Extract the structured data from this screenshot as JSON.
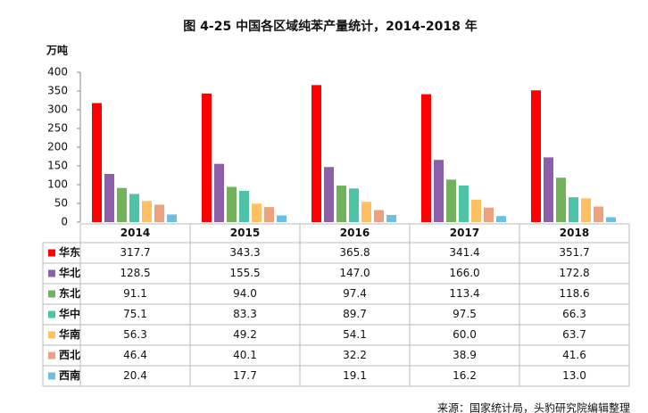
{
  "chart_data": {
    "type": "bar",
    "title": "图 4-25 中国各区域纯苯产量统计，2014-2018 年",
    "y_label": "万吨",
    "source": "来源：国家统计局，头豹研究院编辑整理",
    "categories": [
      "2014",
      "2015",
      "2016",
      "2017",
      "2018"
    ],
    "ylim": [
      0,
      400
    ],
    "yticks": [
      0,
      50,
      100,
      150,
      200,
      250,
      300,
      350,
      400
    ],
    "series": [
      {
        "name": "华东",
        "color": "#ff0000",
        "values": [
          317.7,
          343.3,
          365.8,
          341.4,
          351.7
        ],
        "value_labels": [
          "317.7",
          "343.3",
          "365.8",
          "341.4",
          "351.7"
        ]
      },
      {
        "name": "华北",
        "color": "#8e5fa9",
        "values": [
          128.5,
          155.5,
          147.0,
          166.0,
          172.8
        ],
        "value_labels": [
          "128.5",
          "155.5",
          "147.0",
          "166.0",
          "172.8"
        ]
      },
      {
        "name": "东北",
        "color": "#72b25a",
        "values": [
          91.1,
          94.0,
          97.4,
          113.4,
          118.6
        ],
        "value_labels": [
          "91.1",
          "94.0",
          "97.4",
          "113.4",
          "118.6"
        ]
      },
      {
        "name": "华中",
        "color": "#4ec4a6",
        "values": [
          75.1,
          83.3,
          89.7,
          97.5,
          66.3
        ],
        "value_labels": [
          "75.1",
          "83.3",
          "89.7",
          "97.5",
          "66.3"
        ]
      },
      {
        "name": "华南",
        "color": "#ffc062",
        "values": [
          56.3,
          49.2,
          54.1,
          60.0,
          63.7
        ],
        "value_labels": [
          "56.3",
          "49.2",
          "54.1",
          "60.0",
          "63.7"
        ]
      },
      {
        "name": "西北",
        "color": "#eca27e",
        "values": [
          46.4,
          40.1,
          32.2,
          38.9,
          41.6
        ],
        "value_labels": [
          "46.4",
          "40.1",
          "32.2",
          "38.9",
          "41.6"
        ]
      },
      {
        "name": "西南",
        "color": "#6cbfe0",
        "values": [
          20.4,
          17.7,
          19.1,
          16.2,
          13.0
        ],
        "value_labels": [
          "20.4",
          "17.7",
          "19.1",
          "16.2",
          "13.0"
        ]
      }
    ]
  }
}
